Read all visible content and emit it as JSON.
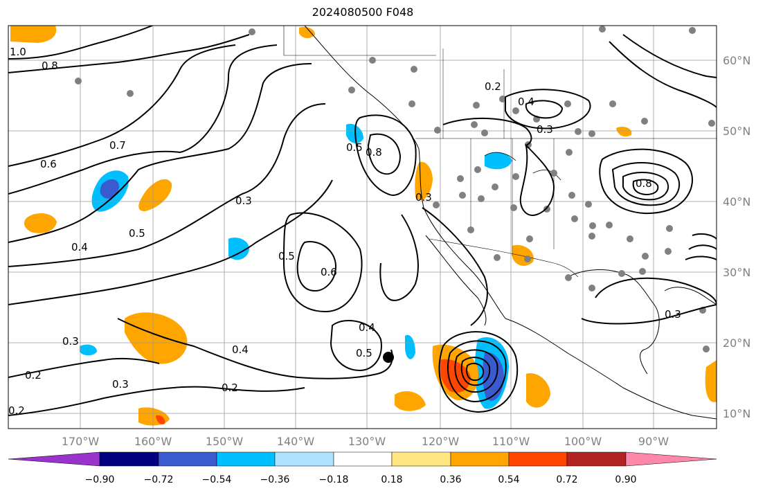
{
  "title": "2024080500 F048",
  "axes": {
    "lon_range": [
      -180,
      -80
    ],
    "lat_range": [
      8,
      65
    ],
    "lon_ticks": [
      {
        "value": -170,
        "label": "170°W"
      },
      {
        "value": -160,
        "label": "160°W"
      },
      {
        "value": -150,
        "label": "150°W"
      },
      {
        "value": -140,
        "label": "140°W"
      },
      {
        "value": -130,
        "label": "130°W"
      },
      {
        "value": -120,
        "label": "120°W"
      },
      {
        "value": -110,
        "label": "110°W"
      },
      {
        "value": -100,
        "label": "100°W"
      },
      {
        "value": -90,
        "label": "90°W"
      }
    ],
    "lat_ticks": [
      {
        "value": 60,
        "label": "60°N"
      },
      {
        "value": 50,
        "label": "50°N"
      },
      {
        "value": 40,
        "label": "40°N"
      },
      {
        "value": 30,
        "label": "30°N"
      },
      {
        "value": 20,
        "label": "20°N"
      },
      {
        "value": 10,
        "label": "10°N"
      }
    ],
    "grid": true
  },
  "colorbar": {
    "bins": [
      {
        "color": "#9933cc"
      },
      {
        "color": "#000080"
      },
      {
        "color": "#3a5bcf"
      },
      {
        "color": "#00bfff"
      },
      {
        "color": "#aee3ff"
      },
      {
        "color": "#ffffff"
      },
      {
        "color": "#ffe680"
      },
      {
        "color": "#ffa500"
      },
      {
        "color": "#ff4500"
      },
      {
        "color": "#b22222"
      },
      {
        "color": "#ff88aa"
      }
    ],
    "ticks": [
      "−0.90",
      "−0.72",
      "−0.54",
      "−0.36",
      "−0.18",
      "0.18",
      "0.36",
      "0.54",
      "0.72",
      "0.90"
    ]
  },
  "contour_labels": [
    "1.0",
    "0.8",
    "0.7",
    "0.6",
    "0.5",
    "0.4",
    "0.3",
    "0.2",
    "0.3",
    "0.2",
    "0.5",
    "0.6",
    "0.5",
    "0.4",
    "0.3",
    "0.2",
    "0.8",
    "0.5",
    "0.3",
    "0.4",
    "0.3",
    "0.2",
    "0.8",
    "0.4",
    "0.3"
  ],
  "marker": {
    "lon": -126,
    "lat": 18
  }
}
